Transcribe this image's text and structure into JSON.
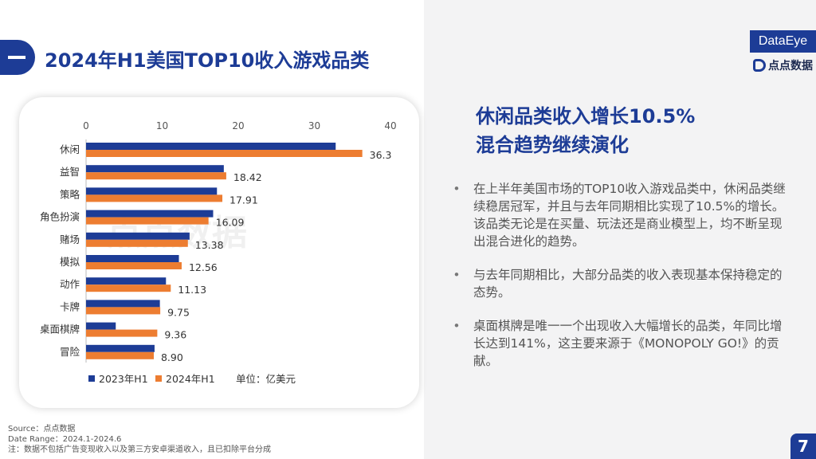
{
  "page": {
    "title": "2024年H1美国TOP10收入游戏品类",
    "page_number": "7"
  },
  "brand": {
    "box_label": "DataEye",
    "logo_text": "点点数据"
  },
  "colors": {
    "primary": "#1d3c96",
    "series_2023": "#1d3c96",
    "series_2024": "#ed7d31"
  },
  "chart_data": {
    "type": "bar",
    "orientation": "horizontal",
    "categories": [
      "休闲",
      "益智",
      "策略",
      "角色扮演",
      "赌场",
      "模拟",
      "动作",
      "卡牌",
      "桌面棋牌",
      "冒险"
    ],
    "series": [
      {
        "name": "2023年H1",
        "values": [
          32.8,
          18.1,
          17.2,
          16.7,
          13.6,
          12.2,
          10.5,
          9.7,
          3.9,
          9.0
        ]
      },
      {
        "name": "2024年H1",
        "values": [
          36.3,
          18.42,
          17.91,
          16.09,
          13.38,
          12.56,
          11.13,
          9.75,
          9.36,
          8.9
        ]
      }
    ],
    "data_labels": [
      "36.3",
      "18.42",
      "17.91",
      "16.09",
      "13.38",
      "12.56",
      "11.13",
      "9.75",
      "9.36",
      "8.90"
    ],
    "x_ticks": [
      "0",
      "10",
      "20",
      "30",
      "40"
    ],
    "xlim": [
      0,
      40
    ],
    "axis_position": "top",
    "legend_position": "bottom-left",
    "unit_note": "单位：亿美元",
    "watermark": "点点数据"
  },
  "insight": {
    "headline_line1": "休闲品类收入增长10.5%",
    "headline_line2": "混合趋势继续演化",
    "bullets": [
      "在上半年美国市场的TOP10收入游戏品类中，休闲品类继续稳居冠军，并且与去年同期相比实现了10.5%的增长。该品类无论是在买量、玩法还是商业模型上，均不断呈现出混合进化的趋势。",
      "与去年同期相比，大部分品类的收入表现基本保持稳定的态势。",
      "桌面棋牌是唯一一个出现收入大幅增长的品类，年同比增长达到141%，这主要来源于《MONOPOLY GO!》的贡献。"
    ],
    "bullet_symbol": "•"
  },
  "footer": {
    "source": "Source：点点数据",
    "date_range": "Date Range：2024.1-2024.6",
    "note": "注：数据不包括广告变现收入以及第三方安卓渠道收入，且已扣除平台分成"
  }
}
